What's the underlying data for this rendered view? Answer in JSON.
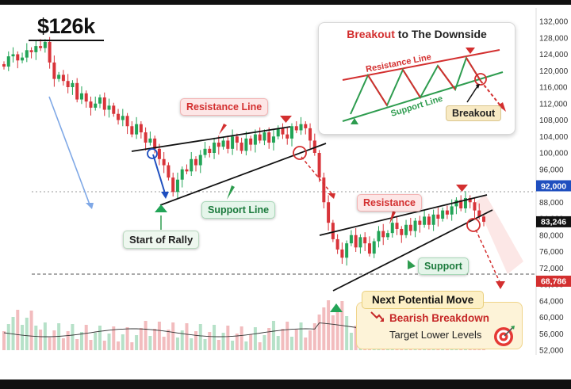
{
  "header": {
    "price_title": "$126k"
  },
  "chart_data": {
    "type": "candlestick",
    "title": "",
    "ylim": [
      52000,
      132000
    ],
    "y_ticks": [
      132000,
      128000,
      124000,
      120000,
      116000,
      112000,
      108000,
      104000,
      100000,
      96000,
      92000,
      88000,
      84000,
      80000,
      76000,
      72000,
      68000,
      64000,
      60000,
      56000,
      52000
    ],
    "y_tick_labels": [
      "132,000",
      "128,000",
      "124,000",
      "120,000",
      "116,000",
      "112,000",
      "108,000",
      "104,000",
      "100,000",
      "96,000",
      "92,000",
      "88,000",
      "84,000",
      "80,000",
      "76,000",
      "72,000",
      "68,000",
      "64,000",
      "60,000",
      "56,000",
      "52,000"
    ],
    "price_tags": [
      {
        "label": "92,000",
        "value": 92000,
        "color": "#1f4fbf"
      },
      {
        "label": "83,246",
        "value": 83246,
        "color": "#111111"
      },
      {
        "label": "68,786",
        "value": 68786,
        "color": "#d32f2f"
      }
    ],
    "closes": [
      121000,
      123500,
      124000,
      122500,
      123200,
      125000,
      124500,
      126000,
      125500,
      127000,
      122000,
      118000,
      119000,
      117500,
      116000,
      117000,
      113000,
      114500,
      112500,
      111000,
      112000,
      113500,
      110500,
      111500,
      109500,
      108000,
      109000,
      106500,
      104500,
      107000,
      105000,
      102500,
      103500,
      101000,
      98500,
      97000,
      94000,
      90500,
      93500,
      96000,
      95500,
      98500,
      97000,
      99500,
      101000,
      100000,
      102500,
      101500,
      103000,
      101000,
      104000,
      102500,
      100500,
      103500,
      102000,
      104500,
      103000,
      105000,
      102500,
      104000,
      106000,
      104500,
      103500,
      106500,
      105500,
      107000,
      106000,
      103000,
      100000,
      94000,
      88000,
      83000,
      79000,
      76500,
      74500,
      78000,
      80000,
      77000,
      79500,
      78000,
      75500,
      78500,
      81000,
      79500,
      80500,
      83000,
      81500,
      80000,
      82500,
      81000,
      83500,
      82500,
      84500,
      82500,
      85000,
      84000,
      86000,
      85000,
      87000,
      88500,
      86500,
      89000,
      88000,
      86000,
      84500,
      83246
    ],
    "annotations": {
      "resistance_label": "Resistance Line",
      "support_label": "Support Line",
      "start_of_rally": "Start of Rally",
      "resistance2_label": "Resistance",
      "support2_label": "Support"
    }
  },
  "inset": {
    "title_highlight": "Breakout",
    "title_rest": " to The Downside",
    "resistance_line": "Resistance Line",
    "support_line": "Support Line",
    "breakout_label": "Breakout"
  },
  "next_move": {
    "title": "Next Potential Move",
    "bearish": "Bearish Breakdown",
    "target": "Target Lower Levels"
  }
}
